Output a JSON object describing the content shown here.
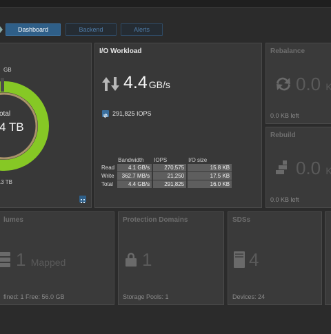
{
  "tabs": [
    {
      "label": "Dashboard",
      "active": true
    },
    {
      "label": "Backend",
      "active": false
    },
    {
      "label": "Alerts",
      "active": false
    }
  ],
  "capacity": {
    "top_value": "GB",
    "center_label": "otal",
    "center_value": "4 TB",
    "bottom_value": ".3 TB",
    "used_fraction": 0.97,
    "ring_color": "#86c825",
    "inner_ring_color": "#a9926a"
  },
  "io": {
    "title": "I/O Workload",
    "bandwidth_value": "4.4",
    "bandwidth_unit": "GB/s",
    "iops": "291,825 IOPS",
    "headers": [
      "Bandwidth",
      "IOPS",
      "I/O size"
    ],
    "rows": [
      {
        "label": "Read",
        "bandwidth": "4.1 GB/s",
        "iops": "270,575",
        "io_size": "15.8 KB"
      },
      {
        "label": "Write",
        "bandwidth": "362.7 MB/s",
        "iops": "21,250",
        "io_size": "17.5 KB"
      },
      {
        "label": "Total",
        "bandwidth": "4.4 GB/s",
        "iops": "291,825",
        "io_size": "16.0 KB"
      }
    ]
  },
  "rebalance": {
    "title": "Rebalance",
    "value": "0.0",
    "unit": "K",
    "footer": "0.0 KB left"
  },
  "rebuild": {
    "title": "Rebuild",
    "value": "0.0",
    "unit": "K",
    "footer": "0.0 KB left"
  },
  "volumes": {
    "title": "lumes",
    "value": "1",
    "label": "Mapped",
    "footer": "fined: 1  Free: 56.0 GB"
  },
  "protection": {
    "title": "Protection Domains",
    "value": "1",
    "footer": "Storage Pools: 1"
  },
  "sdss": {
    "title": "SDSs",
    "value": "4",
    "footer": "Devices: 24"
  }
}
